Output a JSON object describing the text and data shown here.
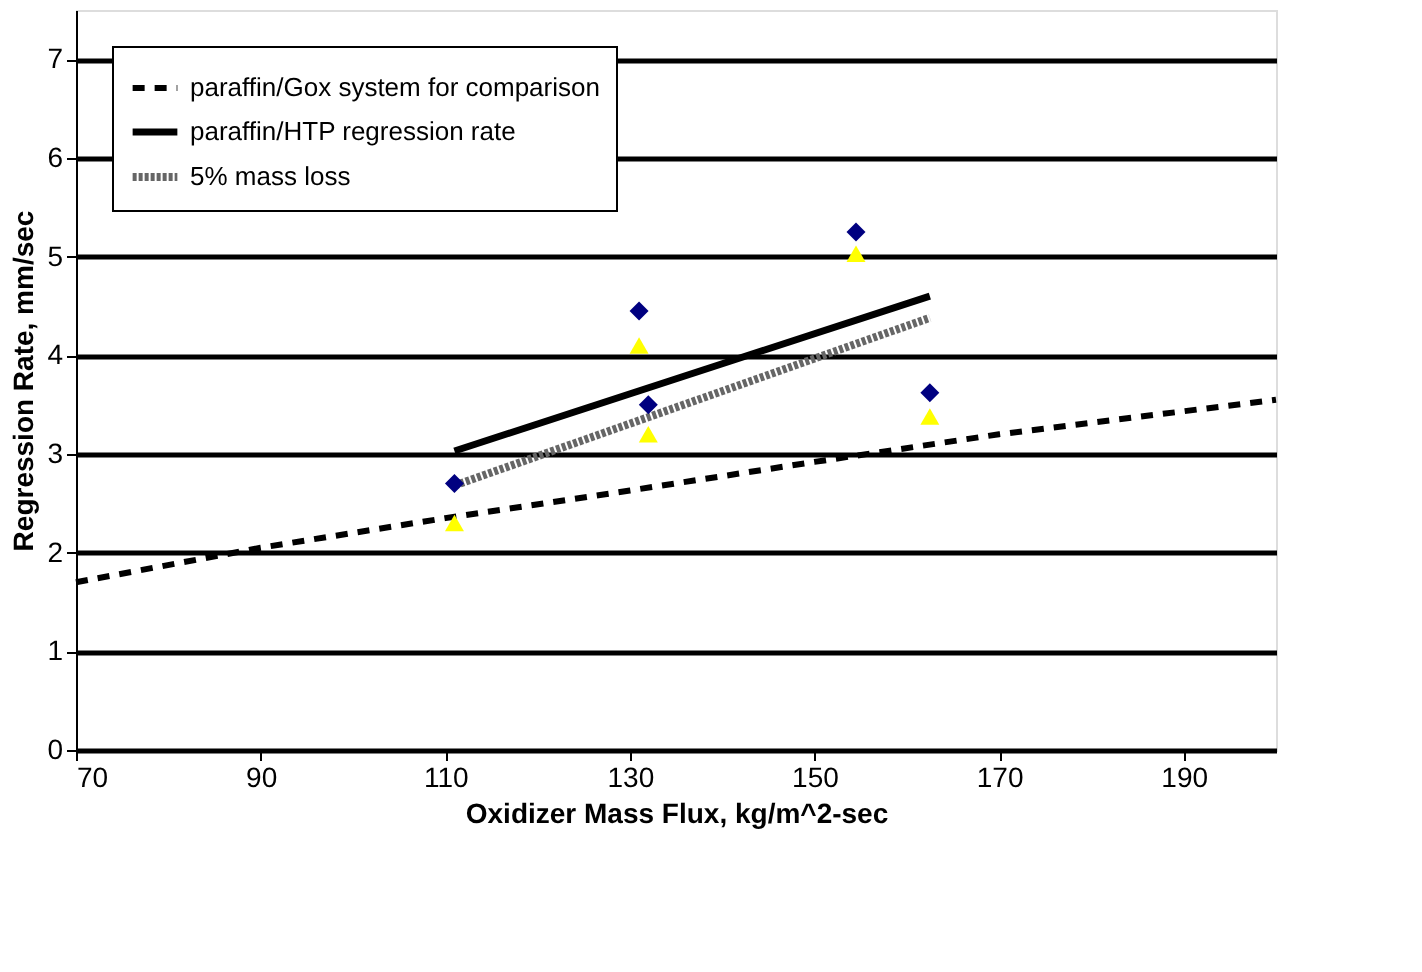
{
  "chart_data": {
    "type": "line",
    "xlabel": "Oxidizer Mass Flux, kg/m^2-sec",
    "ylabel": "Regression Rate, mm/sec",
    "xlim": [
      70,
      200
    ],
    "xticks": [
      70,
      90,
      110,
      130,
      150,
      170,
      190
    ],
    "ylim": [
      0,
      7.5
    ],
    "yticks": [
      0,
      1,
      2,
      3,
      4,
      5,
      6,
      7
    ],
    "grid": "y",
    "legend": "top left",
    "series": [
      {
        "name": "paraffin/Gox system for comparison",
        "line_style": "dashed",
        "color": "#000000",
        "x": [
          70,
          90,
          110,
          130,
          150,
          170,
          200
        ],
        "values": [
          1.7,
          2.05,
          2.35,
          2.63,
          2.92,
          3.2,
          3.55
        ]
      },
      {
        "name": "paraffin/HTP regression rate",
        "line_style": "solid",
        "color": "#000000",
        "x": [
          111,
          162.5
        ],
        "values": [
          3.03,
          4.6
        ]
      },
      {
        "name": "5% mass loss",
        "line_style": "dotted",
        "color": "#666666",
        "x": [
          111,
          162.5
        ],
        "values": [
          2.68,
          4.38
        ]
      },
      {
        "type": "scatter",
        "marker": "diamond",
        "color": "#000080",
        "x": [
          111,
          131,
          132,
          154.5,
          162.5
        ],
        "values": [
          2.7,
          4.45,
          3.5,
          5.25,
          3.62
        ]
      },
      {
        "type": "scatter",
        "marker": "triangle",
        "color": "#ffff00",
        "x": [
          111,
          131,
          132,
          154.5,
          162.5
        ],
        "values": [
          2.3,
          4.1,
          3.2,
          5.03,
          3.38
        ]
      }
    ]
  }
}
